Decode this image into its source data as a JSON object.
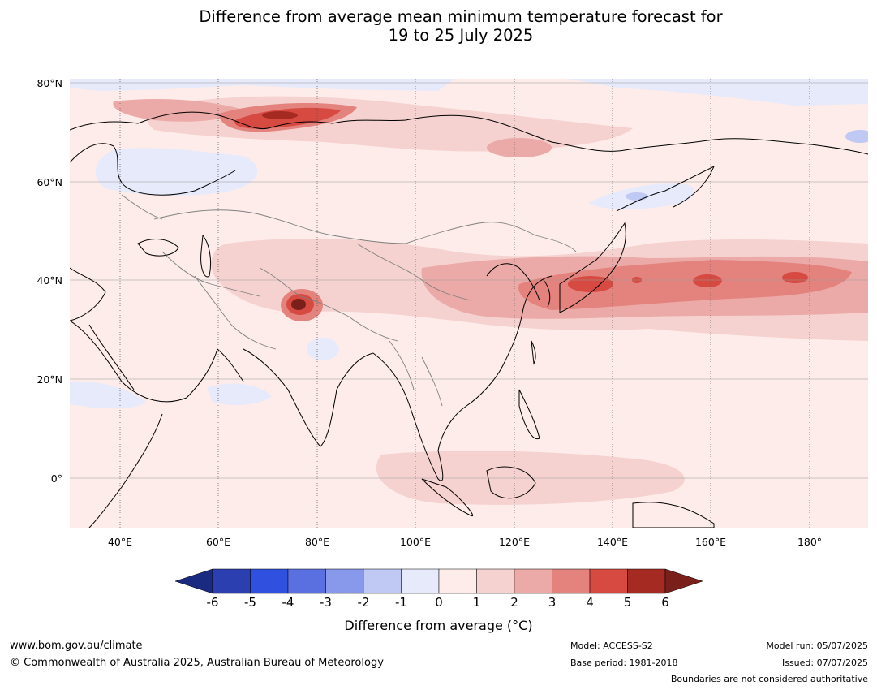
{
  "title": {
    "line1": "Difference from average mean minimum temperature forecast for",
    "line2": "19 to 25 July 2025"
  },
  "map": {
    "lat_labels": [
      "80°N",
      "60°N",
      "40°N",
      "20°N",
      "0°"
    ],
    "lon_labels": [
      "40°E",
      "60°E",
      "80°E",
      "100°E",
      "120°E",
      "140°E",
      "160°E",
      "180°"
    ],
    "ocean_color": "#fdecea",
    "land_outline_color": "#000000",
    "border_color": "#808080"
  },
  "colorbar": {
    "ticks": [
      "-6",
      "-5",
      "-4",
      "-3",
      "-2",
      "-1",
      "0",
      "1",
      "2",
      "3",
      "4",
      "5",
      "6"
    ],
    "colors": [
      "#1a2a80",
      "#2b3fb0",
      "#3050e0",
      "#5a70e0",
      "#8898ea",
      "#c0c8f4",
      "#e6eafb",
      "#fdecea",
      "#f5d2d0",
      "#ebaaa7",
      "#e4827d",
      "#d64a42",
      "#a52a22",
      "#7a1f1a"
    ],
    "label": "Difference from average (°C)"
  },
  "footer": {
    "website": "www.bom.gov.au/climate",
    "copyright": "© Commonwealth of Australia 2025, Australian Bureau of Meteorology",
    "model": "Model: ACCESS-S2",
    "base_period": "Base period: 1981-2018",
    "model_run": "Model run: 05/07/2025",
    "issued": "Issued: 07/07/2025",
    "disclaimer": "Boundaries are not considered authoritative"
  }
}
